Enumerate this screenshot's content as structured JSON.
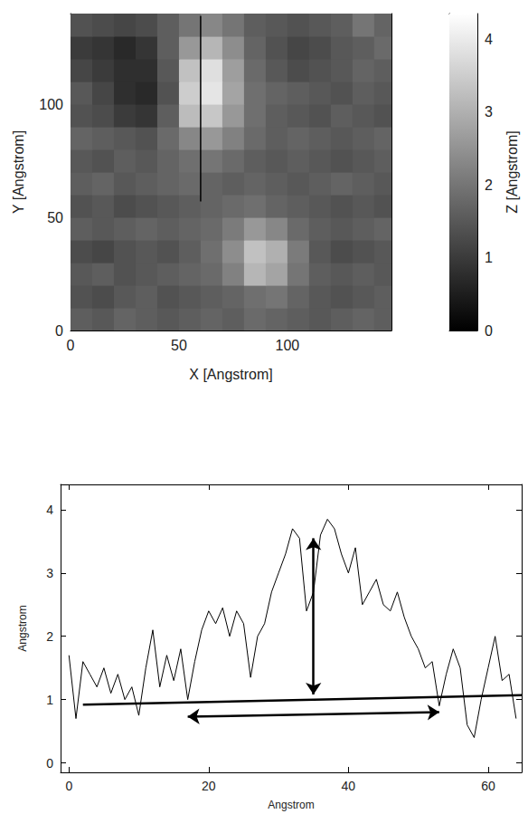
{
  "chart_data": [
    {
      "type": "heatmap",
      "xlabel": "X [Angstrom]",
      "ylabel": "Y [Angstrom]",
      "xlim": [
        0,
        148
      ],
      "ylim": [
        0,
        140
      ],
      "xticks": [
        0,
        50,
        100
      ],
      "yticks": [
        0,
        50,
        100
      ],
      "x_edges": [
        0,
        10,
        20,
        30,
        40,
        50,
        60,
        70,
        80,
        90,
        100,
        110,
        120,
        130,
        140,
        150
      ],
      "y_edges": [
        0,
        10,
        20,
        30,
        40,
        50,
        60,
        70,
        80,
        90,
        100,
        110,
        120,
        130,
        140
      ],
      "z": [
        [
          1.6,
          1.5,
          1.7,
          1.6,
          1.5,
          1.6,
          1.7,
          1.6,
          1.8,
          1.7,
          1.6,
          1.5,
          1.6,
          1.7,
          1.6
        ],
        [
          1.4,
          1.3,
          1.5,
          1.6,
          1.4,
          1.5,
          1.6,
          1.7,
          1.9,
          2.0,
          1.7,
          1.5,
          1.4,
          1.5,
          1.6
        ],
        [
          1.5,
          1.6,
          1.4,
          1.5,
          1.6,
          1.7,
          1.8,
          2.2,
          3.1,
          2.8,
          2.0,
          1.6,
          1.5,
          1.6,
          1.5
        ],
        [
          1.3,
          1.2,
          1.4,
          1.5,
          1.4,
          1.6,
          1.9,
          2.4,
          3.3,
          3.0,
          2.1,
          1.5,
          1.3,
          1.4,
          1.5
        ],
        [
          1.6,
          1.5,
          1.6,
          1.7,
          1.6,
          1.7,
          1.8,
          2.1,
          2.6,
          2.3,
          1.8,
          1.6,
          1.5,
          1.6,
          1.7
        ],
        [
          1.4,
          1.5,
          1.3,
          1.4,
          1.5,
          1.6,
          1.7,
          1.8,
          1.9,
          1.7,
          1.6,
          1.5,
          1.4,
          1.5,
          1.4
        ],
        [
          1.6,
          1.7,
          1.5,
          1.6,
          1.7,
          1.8,
          1.7,
          1.6,
          1.7,
          1.6,
          1.5,
          1.6,
          1.7,
          1.6,
          1.5
        ],
        [
          1.5,
          1.4,
          1.6,
          1.5,
          1.7,
          1.9,
          2.0,
          1.8,
          1.6,
          1.5,
          1.6,
          1.5,
          1.4,
          1.5,
          1.6
        ],
        [
          1.7,
          1.6,
          1.5,
          1.4,
          1.8,
          2.3,
          2.6,
          2.2,
          1.8,
          1.6,
          1.7,
          1.6,
          1.5,
          1.6,
          1.7
        ],
        [
          1.4,
          1.3,
          1.0,
          0.9,
          1.6,
          3.2,
          3.4,
          2.6,
          1.9,
          1.6,
          1.5,
          1.4,
          1.6,
          1.5,
          1.4
        ],
        [
          1.5,
          1.2,
          0.8,
          0.7,
          1.4,
          3.5,
          3.9,
          2.8,
          1.9,
          1.7,
          1.6,
          1.5,
          1.4,
          1.6,
          1.5
        ],
        [
          1.2,
          1.0,
          0.8,
          0.8,
          1.5,
          3.3,
          3.8,
          2.7,
          1.8,
          1.5,
          1.3,
          1.4,
          1.5,
          1.7,
          1.6
        ],
        [
          1.0,
          0.9,
          0.7,
          0.9,
          1.6,
          2.6,
          3.1,
          2.4,
          1.7,
          1.4,
          1.2,
          1.3,
          1.5,
          1.6,
          1.8
        ],
        [
          1.4,
          1.3,
          1.2,
          1.3,
          1.6,
          2.0,
          2.3,
          2.0,
          1.6,
          1.5,
          1.4,
          1.5,
          1.6,
          2.0,
          1.7
        ]
      ],
      "colorbar": {
        "label": "Z [Angstrom]",
        "range": [
          0,
          4.35
        ],
        "ticks": [
          0,
          1,
          2,
          3,
          4
        ]
      },
      "profile_line": [
        [
          60,
          139
        ],
        [
          60,
          57
        ]
      ]
    },
    {
      "type": "line",
      "xlabel": "Angstrom",
      "ylabel": "Angstrom",
      "xlim": [
        -1.2,
        64.8
      ],
      "ylim": [
        -0.15,
        4.4
      ],
      "xticks": [
        0,
        20,
        40,
        60
      ],
      "yticks": [
        0,
        1,
        2,
        3,
        4
      ],
      "color": "#000000",
      "x": [
        0,
        1,
        2,
        3,
        4,
        5,
        6,
        7,
        8,
        9,
        10,
        11,
        12,
        13,
        14,
        15,
        16,
        17,
        18,
        19,
        20,
        21,
        22,
        23,
        24,
        25,
        26,
        27,
        28,
        29,
        30,
        31,
        32,
        33,
        34,
        35,
        36,
        37,
        38,
        39,
        40,
        41,
        42,
        43,
        44,
        45,
        46,
        47,
        48,
        49,
        50,
        51,
        52,
        53,
        54,
        55,
        56,
        57,
        58,
        59,
        60,
        61,
        62,
        63,
        64
      ],
      "values": [
        1.7,
        0.7,
        1.6,
        1.4,
        1.2,
        1.5,
        1.1,
        1.4,
        1.0,
        1.2,
        0.75,
        1.5,
        2.1,
        1.2,
        1.7,
        1.3,
        1.8,
        1.0,
        1.6,
        2.1,
        2.4,
        2.2,
        2.45,
        2.0,
        2.4,
        2.2,
        1.35,
        2.0,
        2.2,
        2.7,
        3.0,
        3.3,
        3.7,
        3.55,
        2.4,
        2.7,
        3.6,
        3.85,
        3.7,
        3.3,
        3.0,
        3.4,
        2.5,
        2.7,
        2.9,
        2.5,
        2.4,
        2.7,
        2.3,
        2.0,
        1.8,
        1.5,
        1.6,
        0.9,
        1.4,
        1.8,
        1.5,
        0.6,
        0.4,
        1.0,
        1.5,
        2.0,
        1.3,
        1.4,
        0.7
      ],
      "baseline": [
        [
          2,
          0.92
        ],
        [
          64.8,
          1.07
        ]
      ],
      "arrows": [
        [
          [
            35,
            1.08
          ],
          [
            35,
            3.55
          ]
        ],
        [
          [
            17,
            0.73
          ],
          [
            53,
            0.8
          ]
        ]
      ]
    }
  ]
}
